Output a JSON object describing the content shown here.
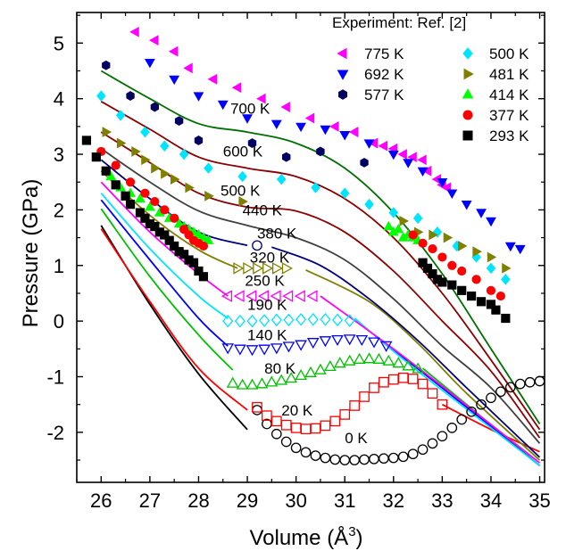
{
  "chart_data": {
    "type": "line",
    "xlabel": "Volume (Å",
    "xlabel_sup": "3",
    "xlabel_close": ")",
    "ylabel": "Pressure (GPa)",
    "xlim": [
      25.5,
      35.1
    ],
    "ylim": [
      -2.9,
      5.55
    ],
    "x_ticks": [
      26,
      27,
      28,
      29,
      30,
      31,
      32,
      33,
      34,
      35
    ],
    "y_ticks": [
      -2,
      -1,
      0,
      1,
      2,
      3,
      4,
      5
    ],
    "grid": false,
    "legend": {
      "title": "Experiment: Ref. [2]",
      "placement": "top-right"
    },
    "theory_series": [
      {
        "name": "0 K",
        "color": "#000000",
        "label_at": [
          31.0,
          -2.1
        ],
        "x": [
          26.0,
          27.0,
          28.0,
          29.0
        ],
        "y": [
          1.72,
          0.3,
          -0.95,
          -1.95
        ],
        "markers": {
          "shape": "circle-open",
          "x": [
            29.2,
            29.4,
            29.6,
            29.8,
            30.0,
            30.2,
            30.4,
            30.6,
            30.8,
            31.0,
            31.2,
            31.4,
            31.6,
            31.8,
            32.0,
            32.2,
            32.4,
            32.6,
            32.8,
            33.0,
            33.2,
            33.4,
            33.6,
            33.8,
            34.0,
            34.2,
            34.4,
            34.6,
            34.8,
            35.0
          ],
          "y": [
            -1.6,
            -1.85,
            -2.03,
            -2.17,
            -2.28,
            -2.36,
            -2.42,
            -2.46,
            -2.49,
            -2.5,
            -2.5,
            -2.49,
            -2.48,
            -2.47,
            -2.46,
            -2.44,
            -2.39,
            -2.31,
            -2.2,
            -2.07,
            -1.92,
            -1.77,
            -1.63,
            -1.5,
            -1.38,
            -1.27,
            -1.19,
            -1.13,
            -1.1,
            -1.08
          ]
        }
      },
      {
        "name": "20 K",
        "color": "#ff0000",
        "label_at": [
          29.7,
          -1.6
        ],
        "x": [
          26.0,
          27.0,
          28.0,
          29.0,
          33.0,
          34.0,
          35.0
        ],
        "y": [
          1.66,
          0.35,
          -0.85,
          -1.6,
          -1.5,
          -1.95,
          -2.35
        ],
        "markers": {
          "shape": "square-open",
          "x": [
            29.2,
            29.4,
            29.6,
            29.8,
            30.0,
            30.2,
            30.4,
            30.6,
            30.8,
            31.0,
            31.2,
            31.4,
            31.6,
            31.8,
            32.0,
            32.2,
            32.4,
            32.6,
            32.8,
            33.0
          ],
          "y": [
            -1.55,
            -1.7,
            -1.8,
            -1.87,
            -1.92,
            -1.94,
            -1.93,
            -1.88,
            -1.8,
            -1.68,
            -1.52,
            -1.36,
            -1.2,
            -1.1,
            -1.05,
            -1.02,
            -1.04,
            -1.13,
            -1.3,
            -1.5
          ]
        }
      },
      {
        "name": "80 K",
        "color": "#00c000",
        "label_at": [
          29.35,
          -0.85
        ],
        "x": [
          26.0,
          27.0,
          28.0,
          28.7,
          32.6,
          33.5,
          35.0
        ],
        "y": [
          2.02,
          0.8,
          -0.25,
          -0.88,
          -0.85,
          -1.5,
          -2.6
        ],
        "markers": {
          "shape": "triangle-up-open",
          "x": [
            28.7,
            28.9,
            29.1,
            29.3,
            29.5,
            29.7,
            29.9,
            30.1,
            30.3,
            30.5,
            30.7,
            30.9,
            31.1,
            31.3,
            31.5,
            31.7,
            31.9,
            32.1,
            32.3,
            32.5
          ],
          "y": [
            -1.12,
            -1.15,
            -1.15,
            -1.13,
            -1.1,
            -1.07,
            -1.03,
            -0.98,
            -0.93,
            -0.88,
            -0.82,
            -0.76,
            -0.72,
            -0.69,
            -0.68,
            -0.69,
            -0.72,
            -0.76,
            -0.81,
            -0.86
          ]
        }
      },
      {
        "name": "140 K",
        "color": "#0000ff",
        "label_at": [
          29.0,
          -0.25
        ],
        "x": [
          26.0,
          27.0,
          28.0,
          28.6,
          31.9,
          33.0,
          35.0
        ],
        "y": [
          2.18,
          1.1,
          0.05,
          -0.45,
          -0.45,
          -1.2,
          -2.6
        ],
        "markers": {
          "shape": "triangle-down-open",
          "x": [
            28.6,
            28.85,
            29.1,
            29.35,
            29.6,
            29.85,
            30.1,
            30.35,
            30.6,
            30.85,
            31.1,
            31.35,
            31.6,
            31.85
          ],
          "y": [
            -0.48,
            -0.5,
            -0.51,
            -0.5,
            -0.48,
            -0.45,
            -0.42,
            -0.38,
            -0.35,
            -0.33,
            -0.32,
            -0.33,
            -0.37,
            -0.44
          ]
        }
      },
      {
        "name": "190 K",
        "color": "#00e5ff",
        "label_at": [
          29.0,
          0.3
        ],
        "x": [
          26.0,
          27.0,
          28.0,
          28.6,
          31.2,
          32.5,
          35.0
        ],
        "y": [
          2.3,
          1.3,
          0.45,
          0.05,
          0.05,
          -0.9,
          -2.6
        ],
        "markers": {
          "shape": "diamond-open",
          "x": [
            28.6,
            28.85,
            29.1,
            29.35,
            29.6,
            29.85,
            30.1,
            30.35,
            30.6,
            30.85,
            31.1
          ],
          "y": [
            0.0,
            0.0,
            0.0,
            0.01,
            0.02,
            0.02,
            0.03,
            0.03,
            0.03,
            0.02,
            0.01
          ]
        }
      },
      {
        "name": "250 K",
        "color": "#ff00ff",
        "label_at": [
          28.95,
          0.73
        ],
        "x": [
          26.0,
          27.0,
          28.0,
          28.6,
          30.5,
          32.3,
          35.0
        ],
        "y": [
          2.5,
          1.6,
          0.85,
          0.45,
          0.45,
          -0.7,
          -2.55
        ],
        "markers": {
          "shape": "triangle-left-open",
          "x": [
            28.6,
            28.85,
            29.1,
            29.35,
            29.6,
            29.85,
            30.1,
            30.35
          ],
          "y": [
            0.45,
            0.45,
            0.45,
            0.45,
            0.45,
            0.45,
            0.45,
            0.45
          ]
        }
      },
      {
        "name": "320 K",
        "color": "#808000",
        "label_at": [
          29.05,
          1.15
        ],
        "x": [
          26.0,
          27.0,
          28.0,
          28.8,
          30.2,
          31.5,
          32.5,
          33.5,
          35.0
        ],
        "y": [
          2.7,
          1.9,
          1.28,
          0.95,
          0.92,
          0.35,
          -0.4,
          -1.3,
          -2.5
        ],
        "markers": {
          "shape": "triangle-right-open",
          "x": [
            28.8,
            29.0,
            29.2,
            29.4,
            29.6,
            29.8
          ],
          "y": [
            0.95,
            0.95,
            0.95,
            0.95,
            0.95,
            0.95
          ]
        }
      },
      {
        "name": "380 K",
        "color": "#000080",
        "label_at": [
          29.2,
          1.58
        ],
        "x": [
          26.0,
          27.0,
          28.0,
          29.0,
          29.5,
          30.5,
          31.5,
          32.5,
          33.5,
          35.0
        ],
        "y": [
          2.9,
          2.2,
          1.6,
          1.36,
          1.33,
          1.0,
          0.4,
          -0.35,
          -1.2,
          -2.45
        ],
        "markers": {
          "shape": "circle-open",
          "x": [
            29.2
          ],
          "y": [
            1.36
          ]
        }
      },
      {
        "name": "440 K",
        "color": "#404040",
        "label_at": [
          28.9,
          2.0
        ],
        "x": [
          26.0,
          27.0,
          28.0,
          29.0,
          30.0,
          31.0,
          32.0,
          33.0,
          34.0,
          35.0
        ],
        "y": [
          3.1,
          2.5,
          1.98,
          1.72,
          1.5,
          1.1,
          0.4,
          -0.45,
          -1.2,
          -2.2
        ]
      },
      {
        "name": "500 K",
        "color": "#8b0000",
        "label_at": [
          28.45,
          2.35
        ],
        "x": [
          26.0,
          27.0,
          28.0,
          29.0,
          30.0,
          31.0,
          32.0,
          33.0,
          34.0,
          35.0
        ],
        "y": [
          3.4,
          2.85,
          2.3,
          2.05,
          1.98,
          1.6,
          0.9,
          0.0,
          -0.9,
          -2.1
        ]
      },
      {
        "name": "600 K",
        "color": "#8b0000",
        "label_at": [
          28.5,
          3.06
        ],
        "x": [
          26.0,
          27.0,
          28.0,
          29.0,
          30.0,
          31.0,
          32.0,
          33.0,
          34.0,
          35.0
        ],
        "y": [
          3.95,
          3.45,
          2.95,
          2.75,
          2.6,
          2.2,
          1.5,
          0.5,
          -0.7,
          -1.95
        ]
      },
      {
        "name": "700 K",
        "color": "#007000",
        "label_at": [
          28.65,
          3.83
        ],
        "x": [
          26.0,
          27.0,
          28.0,
          29.0,
          30.0,
          31.0,
          32.0,
          33.0,
          34.0,
          35.0
        ],
        "y": [
          4.5,
          4.0,
          3.55,
          3.4,
          3.2,
          2.75,
          1.95,
          0.85,
          -0.5,
          -1.85
        ]
      }
    ],
    "experiment_series": [
      {
        "name": "775 K",
        "color": "#ff00ff",
        "marker": "triangle-left",
        "legend_col": 0,
        "legend_row": 0,
        "x": [
          26.7,
          27.1,
          27.5,
          27.8,
          28.3,
          28.8,
          29.3,
          29.8,
          30.3,
          30.8,
          31.2,
          31.6,
          31.8,
          32.0,
          32.2,
          32.4,
          32.6,
          32.7,
          32.9,
          33.0,
          33.1
        ],
        "y": [
          5.2,
          5.05,
          4.85,
          4.55,
          4.35,
          4.2,
          4.0,
          3.85,
          3.65,
          3.5,
          3.4,
          3.2,
          3.15,
          3.1,
          3.0,
          2.95,
          2.9,
          2.7,
          2.55,
          2.45,
          2.4
        ]
      },
      {
        "name": "692 K",
        "color": "#0000ff",
        "marker": "triangle-down",
        "legend_col": 0,
        "legend_row": 1,
        "x": [
          27.0,
          27.5,
          28.0,
          28.5,
          29.0,
          29.6,
          30.1,
          30.6,
          31.0,
          31.5,
          32.0,
          32.3,
          32.6,
          33.0,
          33.2,
          33.5,
          33.8,
          34.0,
          34.4,
          34.6
        ],
        "y": [
          4.65,
          4.35,
          4.05,
          3.9,
          3.65,
          3.55,
          3.5,
          3.45,
          3.35,
          3.2,
          3.0,
          2.85,
          2.7,
          2.5,
          2.3,
          2.1,
          1.95,
          1.8,
          1.35,
          1.3
        ]
      },
      {
        "name": "577 K",
        "color": "#000060",
        "marker": "hexagon",
        "legend_col": 0,
        "legend_row": 2,
        "x": [
          26.1,
          26.6,
          27.1,
          27.6,
          28.0,
          29.1,
          29.8,
          30.5,
          31.4
        ],
        "y": [
          4.6,
          4.05,
          3.85,
          3.6,
          3.25,
          3.2,
          2.95,
          3.05,
          2.85
        ]
      },
      {
        "name": "500 K",
        "color": "#00e5ff",
        "marker": "diamond",
        "legend_col": 1,
        "legend_row": 0,
        "x": [
          26.0,
          26.4,
          26.9,
          27.3,
          27.7,
          28.2,
          28.9,
          29.7,
          30.4,
          31.0,
          31.5,
          32.0,
          32.5,
          32.9,
          33.3,
          33.7,
          34.0,
          34.3
        ],
        "y": [
          4.05,
          3.7,
          3.4,
          3.15,
          3.0,
          2.75,
          2.6,
          2.55,
          2.4,
          2.3,
          2.1,
          1.95,
          1.85,
          1.6,
          1.35,
          1.15,
          0.95,
          0.75
        ]
      },
      {
        "name": "481 K",
        "color": "#808000",
        "marker": "triangle-right",
        "legend_col": 1,
        "legend_row": 1,
        "x": [
          26.1,
          26.4,
          26.7,
          26.9,
          27.1,
          27.3,
          27.5,
          27.8,
          28.2,
          28.9,
          32.2,
          32.5,
          32.8,
          33.1,
          33.4,
          33.7,
          34.0,
          34.3
        ],
        "y": [
          3.4,
          3.2,
          3.05,
          2.9,
          2.75,
          2.65,
          2.55,
          2.4,
          2.25,
          2.15,
          1.8,
          1.6,
          1.55,
          1.5,
          1.35,
          1.25,
          1.15,
          0.95
        ]
      },
      {
        "name": "414 K",
        "color": "#00ff00",
        "marker": "triangle-up",
        "legend_col": 1,
        "legend_row": 2,
        "x": [
          26.2,
          26.4,
          26.6,
          26.8,
          27.0,
          27.2,
          27.4,
          27.6,
          27.7,
          27.8,
          27.9,
          28.0,
          28.1,
          28.2,
          31.9,
          32.0,
          32.1,
          32.2,
          32.3,
          32.4,
          32.5
        ],
        "y": [
          2.6,
          2.4,
          2.3,
          2.2,
          2.05,
          1.95,
          1.85,
          1.75,
          1.7,
          1.65,
          1.6,
          1.55,
          1.5,
          1.45,
          1.7,
          1.6,
          1.65,
          1.5,
          1.55,
          1.5,
          1.45
        ]
      },
      {
        "name": "377 K",
        "color": "#ff0000",
        "marker": "circle",
        "legend_col": 1,
        "legend_row": 3,
        "x": [
          26.0,
          26.3,
          26.6,
          26.9,
          27.1,
          27.3,
          27.5,
          27.7,
          27.8,
          27.9,
          28.0,
          28.1,
          32.4,
          32.6,
          32.8,
          33.0,
          33.2,
          33.4,
          33.7,
          34.0,
          34.2
        ],
        "y": [
          3.05,
          2.8,
          2.5,
          2.3,
          2.15,
          2.0,
          1.85,
          1.65,
          1.55,
          1.45,
          1.4,
          1.35,
          1.55,
          1.4,
          1.3,
          1.15,
          1.0,
          0.9,
          0.75,
          0.55,
          0.45
        ]
      },
      {
        "name": "293 K",
        "color": "#000000",
        "marker": "square",
        "legend_col": 1,
        "legend_row": 4,
        "x": [
          25.7,
          25.9,
          26.1,
          26.3,
          26.5,
          26.6,
          26.8,
          26.9,
          27.0,
          27.1,
          27.2,
          27.3,
          27.4,
          27.5,
          27.6,
          27.7,
          27.8,
          27.9,
          28.0,
          28.1,
          32.6,
          32.7,
          32.8,
          32.9,
          33.0,
          33.2,
          33.4,
          33.6,
          33.8,
          34.0,
          34.1,
          34.3
        ],
        "y": [
          3.25,
          2.95,
          2.7,
          2.45,
          2.25,
          2.1,
          1.95,
          1.85,
          1.75,
          1.7,
          1.6,
          1.55,
          1.45,
          1.35,
          1.25,
          1.2,
          1.1,
          1.05,
          0.9,
          0.8,
          1.05,
          0.95,
          0.85,
          0.75,
          0.7,
          0.65,
          0.55,
          0.45,
          0.35,
          0.3,
          0.2,
          0.05
        ]
      }
    ]
  }
}
